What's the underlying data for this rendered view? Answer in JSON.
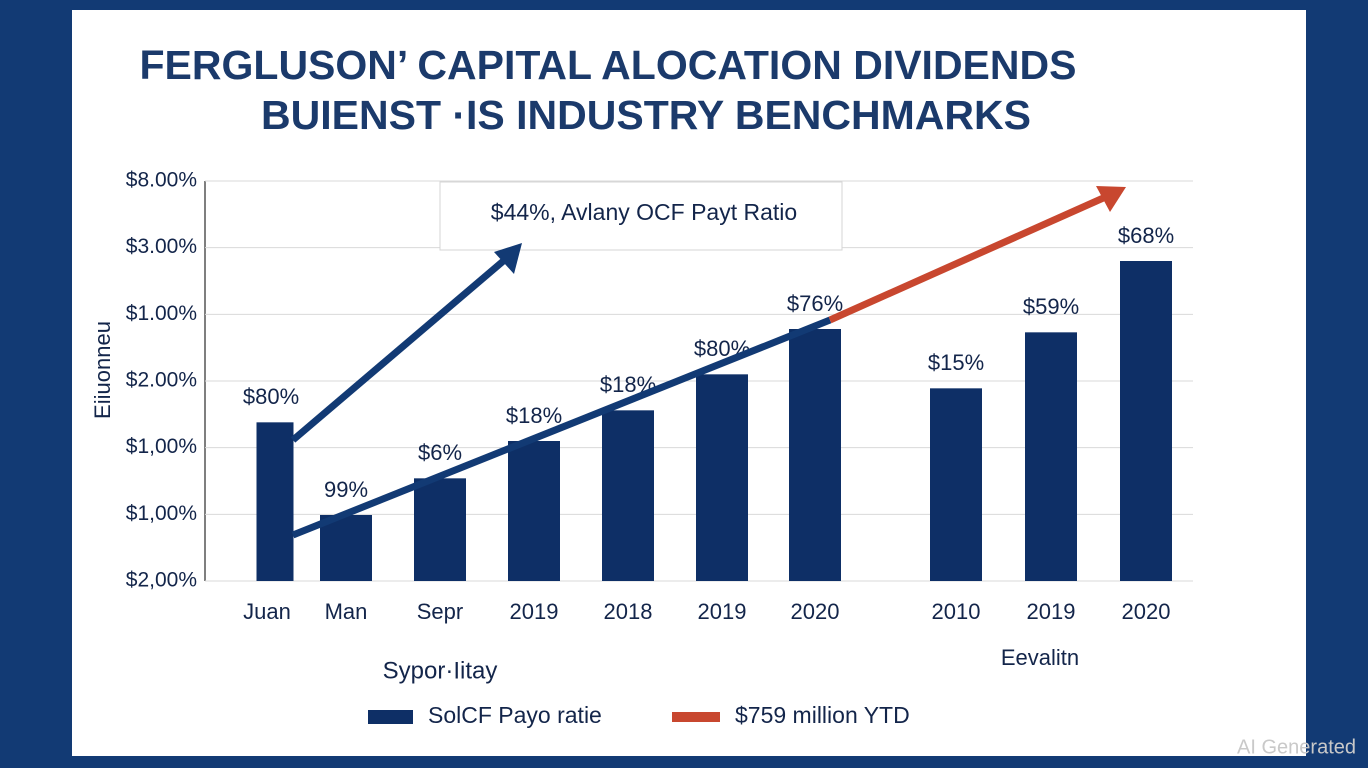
{
  "chart_data": {
    "type": "bar",
    "title": [
      "FERGLUSON’ CAPITAL ALOCATION DIVIDENDS",
      "BUIENST ·IS INDUSTRY BENCHMARKS"
    ],
    "y_label": "Eiiuonneu",
    "callout": "$44%, Avlany OCF Payt Ratio",
    "x_group_labels": [
      "Sypor·Iitay",
      "Eevalitn"
    ],
    "categories": [
      "Juan",
      "Man",
      "Sepr",
      "2019",
      "2018",
      "2019",
      "2020",
      "2010",
      "2019",
      "2020"
    ],
    "series": [
      {
        "name": "SolCF Payo ratie",
        "color": "#0e2f66",
        "values": [
          2.38,
          0.99,
          1.54,
          2.1,
          2.56,
          3.1,
          3.78,
          2.89,
          3.73,
          4.8
        ]
      }
    ],
    "bar_labels": [
      "$80%",
      "99%",
      "$6%",
      "$18%",
      "$18%",
      "$80%",
      "$76%",
      "$15%",
      "$59%",
      "$68%"
    ],
    "trend_legend": {
      "name": "$759 million YTD",
      "color": "#c8472f"
    },
    "ylim": [
      0,
      6
    ],
    "yticks": [
      {
        "value": 0,
        "label": "$2,00%"
      },
      {
        "value": 1,
        "label": "$1,00%"
      },
      {
        "value": 2,
        "label": "$1,00%"
      },
      {
        "value": 3,
        "label": "$2.00%"
      },
      {
        "value": 4,
        "label": "$1.00%"
      },
      {
        "value": 5,
        "label": "$3.00%"
      },
      {
        "value": 6,
        "label": "$8.00%"
      }
    ],
    "grid": true,
    "watermark": "AI Generated"
  }
}
